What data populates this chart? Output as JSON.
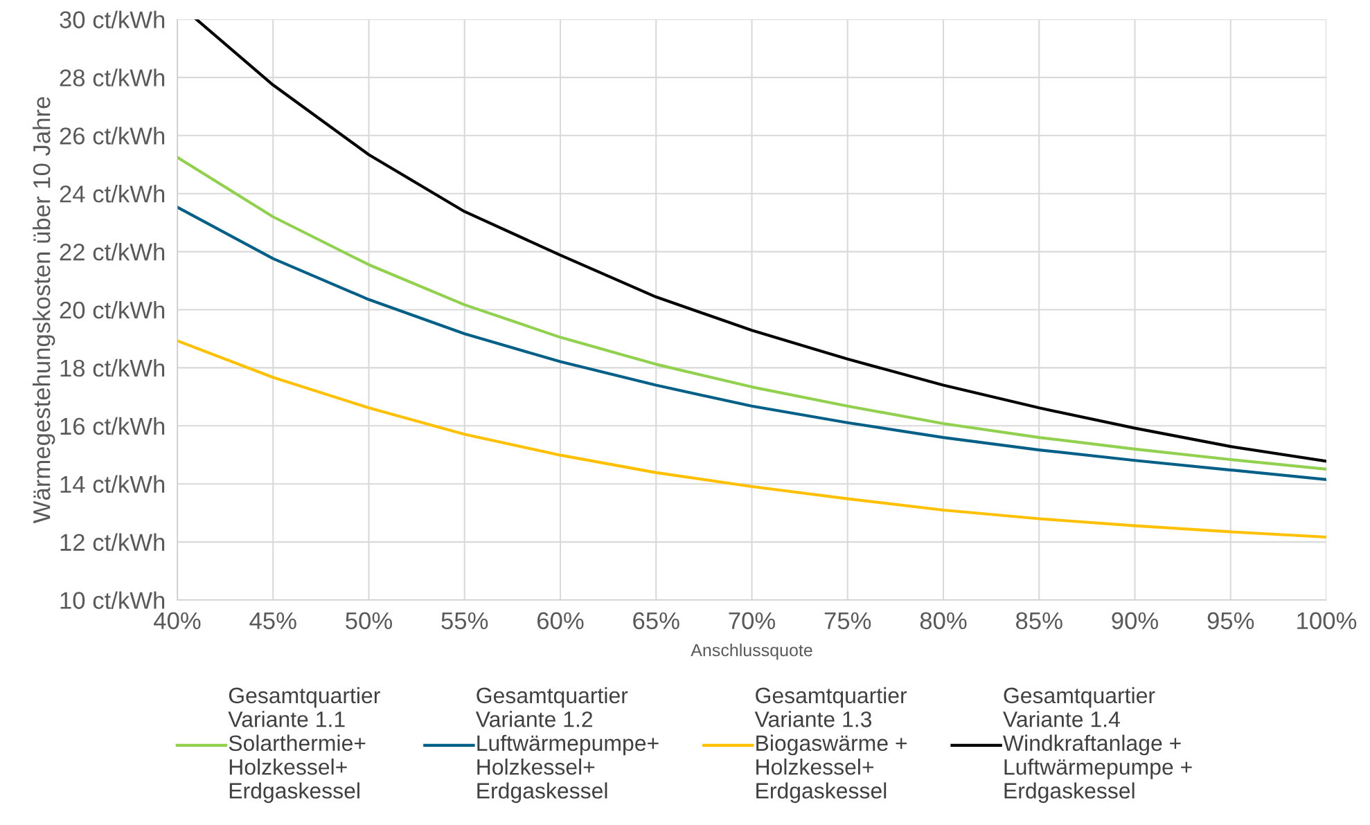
{
  "chart_data": {
    "type": "line",
    "xlabel": "Anschlussquote",
    "ylabel": "Wärmegestehungskosten über 10 Jahre",
    "x": [
      40,
      45,
      50,
      55,
      60,
      65,
      70,
      75,
      80,
      85,
      90,
      95,
      100
    ],
    "series": [
      {
        "name": "Gesamtquartier\nVariante 1.1\nSolarthermie+\nHolzkessel+\nErdgaskessel",
        "color": "#92d050",
        "values": [
          25.25,
          23.2,
          21.55,
          20.17,
          19.05,
          18.12,
          17.34,
          16.68,
          16.08,
          15.6,
          15.2,
          14.84,
          14.51
        ]
      },
      {
        "name": "Gesamtquartier\nVariante 1.2\nLuftwärmepumpe+\nHolzkessel+\nErdgaskessel",
        "color": "#005f87",
        "values": [
          23.53,
          21.76,
          20.35,
          19.17,
          18.21,
          17.4,
          16.68,
          16.11,
          15.6,
          15.17,
          14.81,
          14.48,
          14.15
        ]
      },
      {
        "name": "Gesamtquartier\nVariante 1.3\nBiogaswärme +\nHolzkessel+\nErdgaskessel",
        "color": "#ffc000",
        "values": [
          18.93,
          17.67,
          16.62,
          15.71,
          14.99,
          14.39,
          13.91,
          13.49,
          13.1,
          12.8,
          12.56,
          12.35,
          12.17
        ]
      },
      {
        "name": "Gesamtquartier\nVariante 1.4\nWindkraftanlage +\nLuftwärmepumpe +\nErdgaskessel",
        "color": "#000000",
        "x": [
          41,
          45,
          50,
          55,
          60,
          65,
          70,
          75,
          80,
          85,
          90,
          95,
          100
        ],
        "values": [
          30,
          27.74,
          25.34,
          23.38,
          21.88,
          20.44,
          19.29,
          18.3,
          17.4,
          16.62,
          15.92,
          15.29,
          14.78
        ]
      }
    ],
    "xlim": [
      40,
      100
    ],
    "xticks": [
      {
        "value": 40,
        "label": "40%"
      },
      {
        "value": 45,
        "label": "45%"
      },
      {
        "value": 50,
        "label": "50%"
      },
      {
        "value": 55,
        "label": "55%"
      },
      {
        "value": 60,
        "label": "60%"
      },
      {
        "value": 65,
        "label": "65%"
      },
      {
        "value": 70,
        "label": "70%"
      },
      {
        "value": 75,
        "label": "75%"
      },
      {
        "value": 80,
        "label": "80%"
      },
      {
        "value": 85,
        "label": "85%"
      },
      {
        "value": 90,
        "label": "90%"
      },
      {
        "value": 95,
        "label": "95%"
      },
      {
        "value": 100,
        "label": "100%"
      }
    ],
    "ylim": [
      10,
      30
    ],
    "yticks": [
      {
        "value": 10,
        "label": "10 ct/kWh"
      },
      {
        "value": 12,
        "label": "12 ct/kWh"
      },
      {
        "value": 14,
        "label": "14 ct/kWh"
      },
      {
        "value": 16,
        "label": "16 ct/kWh"
      },
      {
        "value": 18,
        "label": "18 ct/kWh"
      },
      {
        "value": 20,
        "label": "20 ct/kWh"
      },
      {
        "value": 22,
        "label": "22 ct/kWh"
      },
      {
        "value": 24,
        "label": "24 ct/kWh"
      },
      {
        "value": 26,
        "label": "26 ct/kWh"
      },
      {
        "value": 28,
        "label": "28 ct/kWh"
      },
      {
        "value": 30,
        "label": "30 ct/kWh"
      }
    ],
    "grid": true,
    "legend": "bottom"
  }
}
